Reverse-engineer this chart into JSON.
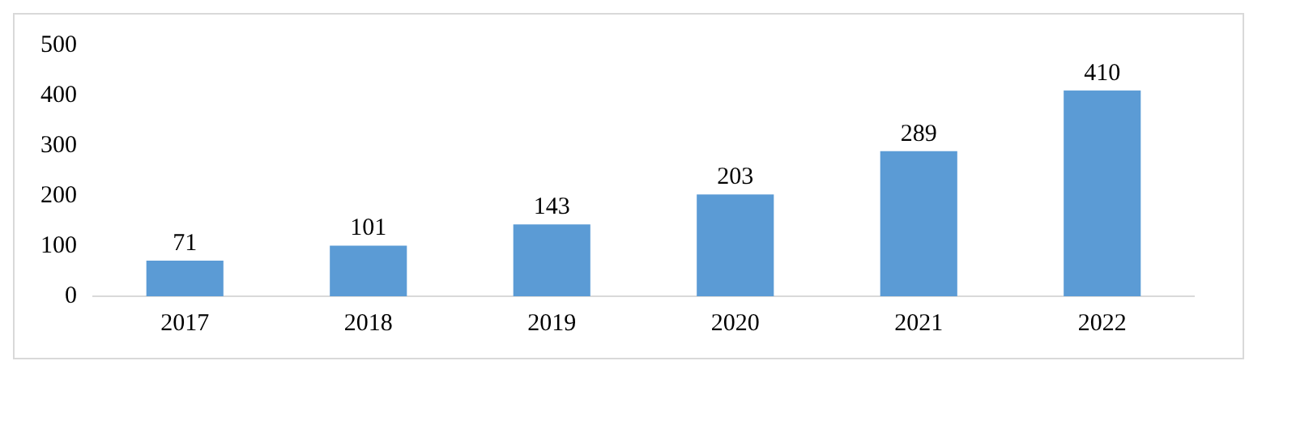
{
  "chart_data": {
    "type": "bar",
    "categories": [
      "2017",
      "2018",
      "2019",
      "2020",
      "2021",
      "2022"
    ],
    "values": [
      71,
      101,
      143,
      203,
      289,
      410
    ],
    "color": "#5b9bd5",
    "ylim": [
      0,
      500
    ],
    "yticks": [
      0,
      100,
      200,
      300,
      400,
      500
    ],
    "grid": false,
    "data_labels": true
  }
}
